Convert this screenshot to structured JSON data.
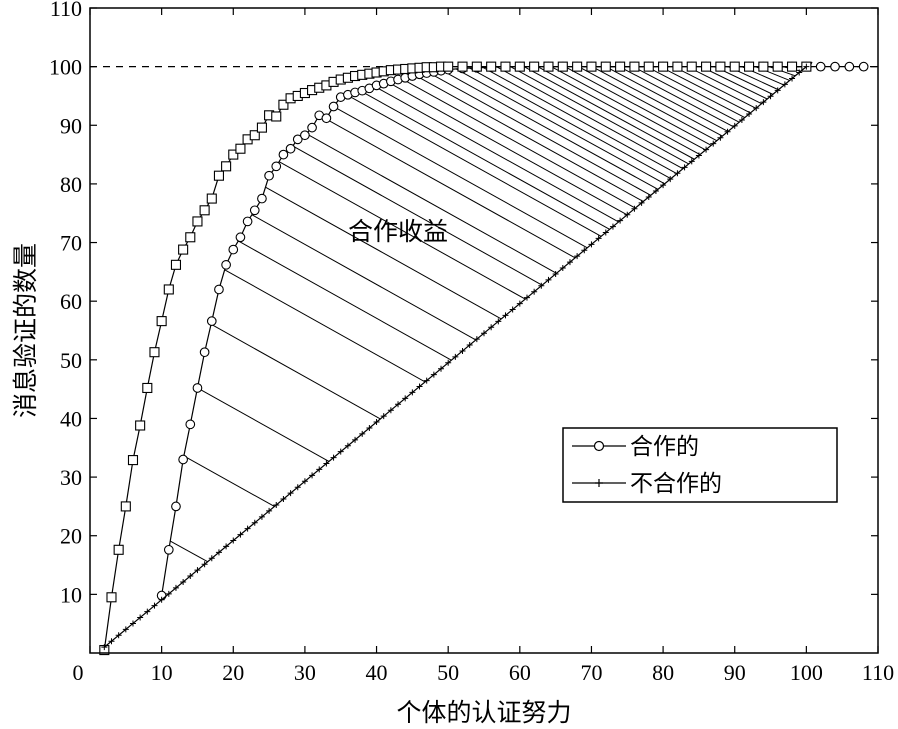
{
  "chart_data": {
    "type": "line",
    "xlabel": "个体的认证努力",
    "ylabel": "消息验证的数量",
    "xlim": [
      0,
      110
    ],
    "ylim": [
      0,
      110
    ],
    "xticks": [
      0,
      10,
      20,
      30,
      40,
      50,
      60,
      70,
      80,
      90,
      100,
      110
    ],
    "yticks": [
      10,
      20,
      30,
      40,
      50,
      60,
      70,
      80,
      90,
      100,
      110
    ],
    "reference_line": {
      "y": 100,
      "style": "dashed"
    },
    "annotation": {
      "text": "合作收益",
      "x": 43,
      "y": 72,
      "hatched_region": "between cooperative curve and non-cooperative line"
    },
    "legend": {
      "placement": "lower-right"
    },
    "series": [
      {
        "name": "合作的",
        "marker": "circle",
        "x": [
          10,
          11,
          12,
          13,
          14,
          15,
          16,
          17,
          18,
          19,
          20,
          21,
          22,
          23,
          24,
          25,
          26,
          27,
          28,
          29,
          30,
          31,
          32,
          33,
          34,
          35,
          36,
          37,
          38,
          39,
          40,
          41,
          42,
          43,
          44,
          45,
          46,
          47,
          48,
          49,
          50,
          52,
          54,
          56,
          58,
          60,
          62,
          64,
          66,
          68,
          70,
          72,
          74,
          76,
          78,
          80,
          82,
          84,
          86,
          88,
          90,
          92,
          94,
          96,
          98,
          100,
          102,
          104,
          106,
          108
        ],
        "y": [
          9.8,
          17.6,
          25.0,
          33.0,
          39.0,
          45.2,
          51.3,
          56.6,
          62.0,
          66.2,
          68.8,
          70.9,
          73.6,
          75.5,
          77.5,
          81.4,
          83.0,
          85.0,
          86.0,
          87.6,
          88.3,
          89.6,
          91.7,
          91.2,
          93.2,
          94.8,
          95.2,
          95.6,
          95.9,
          96.3,
          96.8,
          97.1,
          97.5,
          97.8,
          98.1,
          98.4,
          98.7,
          98.9,
          99.1,
          99.3,
          99.5,
          99.7,
          99.8,
          99.9,
          100,
          100,
          100,
          100,
          100,
          100,
          100,
          100,
          100,
          100,
          100,
          100,
          100,
          100,
          100,
          100,
          100,
          100,
          100,
          100,
          100,
          100,
          100,
          100,
          100,
          100
        ]
      },
      {
        "name": "",
        "marker": "square",
        "x": [
          2,
          3,
          4,
          5,
          6,
          7,
          8,
          9,
          10,
          11,
          12,
          13,
          14,
          15,
          16,
          17,
          18,
          19,
          20,
          21,
          22,
          23,
          24,
          25,
          26,
          27,
          28,
          29,
          30,
          31,
          32,
          33,
          34,
          35,
          36,
          37,
          38,
          39,
          40,
          41,
          42,
          43,
          44,
          45,
          46,
          47,
          48,
          49,
          50,
          52,
          54,
          56,
          58,
          60,
          62,
          64,
          66,
          68,
          70,
          72,
          74,
          76,
          78,
          80,
          82,
          84,
          86,
          88,
          90,
          92,
          94,
          96,
          98,
          100
        ],
        "y": [
          0.5,
          9.5,
          17.6,
          25.0,
          32.9,
          38.8,
          45.2,
          51.3,
          56.6,
          62.0,
          66.2,
          68.8,
          70.9,
          73.6,
          75.5,
          77.5,
          81.4,
          83.0,
          85.0,
          86.0,
          87.6,
          88.3,
          89.6,
          91.7,
          91.5,
          93.5,
          94.6,
          95.0,
          95.5,
          96.0,
          96.4,
          96.8,
          97.4,
          97.8,
          98.1,
          98.4,
          98.6,
          98.8,
          99.0,
          99.2,
          99.4,
          99.5,
          99.6,
          99.7,
          99.8,
          99.9,
          99.9,
          100,
          100,
          100,
          100,
          100,
          100,
          100,
          100,
          100,
          100,
          100,
          100,
          100,
          100,
          100,
          100,
          100,
          100,
          100,
          100,
          100,
          100,
          100,
          100,
          100,
          100,
          100
        ]
      },
      {
        "name": "不合作的",
        "marker": "plus",
        "x": [
          2,
          100
        ],
        "y": [
          1,
          100
        ]
      }
    ]
  }
}
